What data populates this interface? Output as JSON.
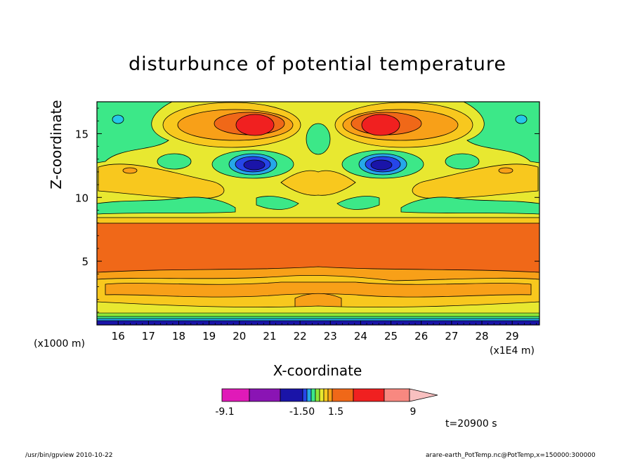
{
  "chart_data": {
    "type": "heatmap",
    "title": "disturbunce of potential temperature",
    "xlabel": "X-coordinate",
    "ylabel": "Z-coordinate",
    "x_ticks": [
      "16",
      "17",
      "18",
      "19",
      "20",
      "21",
      "22",
      "23",
      "24",
      "25",
      "26",
      "27",
      "28",
      "29"
    ],
    "y_ticks": [
      "5",
      "10",
      "15"
    ],
    "xlim": [
      15.3,
      29.9
    ],
    "ylim": [
      0,
      17.5
    ],
    "y_unit": "(x1000 m)",
    "x_unit": "(x1E4 m)",
    "colorbar": {
      "colors": [
        "#e01ab8",
        "#8a14b4",
        "#1a14a8",
        "#2646e8",
        "#26a8e8",
        "#3ce888",
        "#8ee838",
        "#e8e830",
        "#f8c81e",
        "#f8a018",
        "#f06818",
        "#f02020",
        "#f88880",
        "#f8c0c0"
      ],
      "labels": [
        "-9.1",
        "-1.50",
        "1.5",
        "9"
      ]
    },
    "time_label": "t=20900 s"
  },
  "footer": {
    "left": "/usr/bin/gpview   2010-10-22",
    "right": "arare-earth_PotTemp.nc@PotTemp,x=150000:300000"
  }
}
